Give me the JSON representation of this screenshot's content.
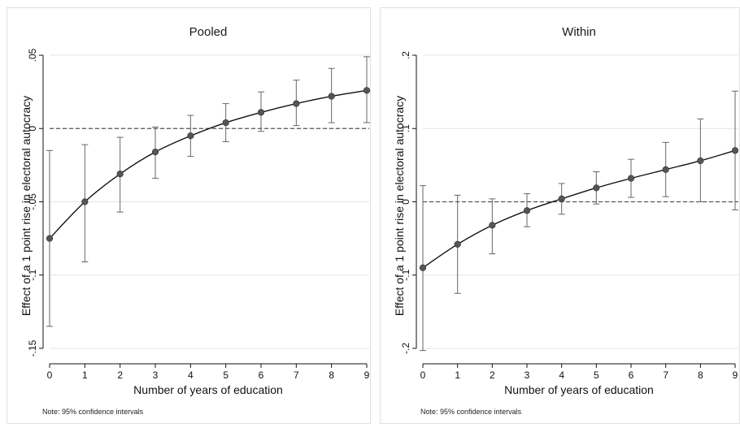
{
  "chart_data": [
    {
      "type": "line",
      "title": "Pooled",
      "xlabel": "Number of years of education",
      "ylabel": "Effect of a 1 point rise in electoral autocracy",
      "note": "Note: 95% confidence intervals",
      "ylim": [
        -0.155,
        0.055
      ],
      "x": [
        0,
        1,
        2,
        3,
        4,
        5,
        6,
        7,
        8,
        9
      ],
      "x_tick_labels": [
        "0",
        "1",
        "2",
        "3",
        "4",
        "5",
        "6",
        "7",
        "8",
        "9"
      ],
      "y_ticks": [
        -0.15,
        -0.1,
        -0.05,
        0,
        0.05
      ],
      "y_tick_labels": [
        "-.15",
        "-.1",
        "-.05",
        "0",
        ".05"
      ],
      "reference_line": 0,
      "grid": true,
      "series": [
        {
          "estimate": [
            -0.075,
            -0.05,
            -0.031,
            -0.016,
            -0.005,
            0.004,
            0.011,
            0.017,
            0.022,
            0.026
          ],
          "ci_lower": [
            -0.135,
            -0.091,
            -0.057,
            -0.034,
            -0.019,
            -0.009,
            -0.002,
            0.002,
            0.004,
            0.004
          ],
          "ci_upper": [
            -0.015,
            -0.011,
            -0.006,
            0.001,
            0.009,
            0.017,
            0.025,
            0.033,
            0.041,
            0.049
          ]
        }
      ]
    },
    {
      "type": "line",
      "title": "Within",
      "xlabel": "Number of years of education",
      "ylabel": "Effect of a 1 point rise in electoral autocracy",
      "note": "Note: 95% confidence intervals",
      "ylim": [
        -0.21,
        0.21
      ],
      "x": [
        0,
        1,
        2,
        3,
        4,
        5,
        6,
        7,
        8,
        9
      ],
      "x_tick_labels": [
        "0",
        "1",
        "2",
        "3",
        "4",
        "5",
        "6",
        "7",
        "8",
        "9"
      ],
      "y_ticks": [
        -0.2,
        -0.1,
        0,
        0.1,
        0.2
      ],
      "y_tick_labels": [
        "-.2",
        "-.1",
        "0",
        ".1",
        ".2"
      ],
      "reference_line": 0,
      "grid": true,
      "series": [
        {
          "estimate": [
            -0.09,
            -0.058,
            -0.032,
            -0.012,
            0.004,
            0.019,
            0.032,
            0.044,
            0.056,
            0.07
          ],
          "ci_lower": [
            -0.203,
            -0.125,
            -0.071,
            -0.034,
            -0.017,
            -0.003,
            0.006,
            0.007,
            0.0,
            -0.011
          ],
          "ci_upper": [
            0.022,
            0.009,
            0.004,
            0.011,
            0.025,
            0.041,
            0.058,
            0.081,
            0.113,
            0.151
          ]
        }
      ]
    }
  ],
  "colors": {
    "line": "#111111",
    "marker": "#555555",
    "ci": "#666666",
    "grid": "#e4e4e4",
    "reference": "#555555",
    "panel_border": "#e0e0e0",
    "axis": "#111111"
  }
}
